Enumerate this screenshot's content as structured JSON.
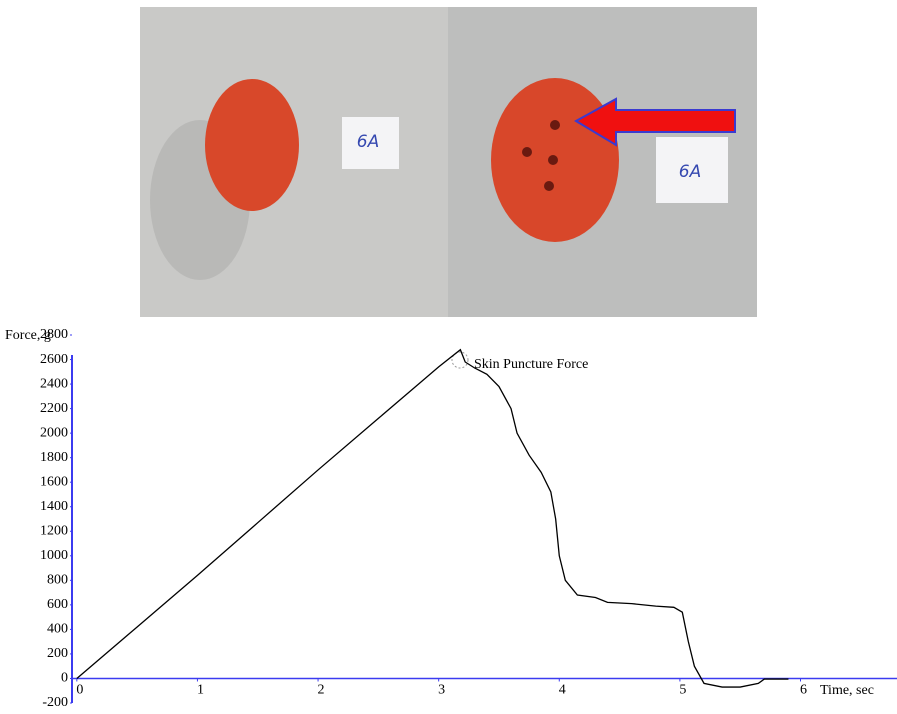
{
  "photo": {
    "labels": [
      "6A",
      "6A"
    ]
  },
  "chart_data": {
    "type": "line",
    "y_label": "Force, g",
    "x_label": "Time, sec",
    "annotation": "Skin Puncture Force",
    "x": [
      0,
      0.5,
      1,
      1.5,
      2,
      2.5,
      3,
      3.18,
      3.22,
      3.3,
      3.4,
      3.5,
      3.6,
      3.65,
      3.75,
      3.85,
      3.93,
      3.97,
      4.0,
      4.05,
      4.15,
      4.3,
      4.4,
      4.6,
      4.8,
      4.95,
      5.02,
      5.07,
      5.12,
      5.2,
      5.35,
      5.5,
      5.65,
      5.7,
      5.9
    ],
    "values": [
      0,
      420,
      840,
      1270,
      1700,
      2120,
      2540,
      2680,
      2580,
      2530,
      2480,
      2380,
      2200,
      2000,
      1820,
      1680,
      1520,
      1300,
      1000,
      800,
      680,
      660,
      620,
      610,
      590,
      580,
      540,
      300,
      100,
      -40,
      -70,
      -70,
      -40,
      -5,
      -5
    ],
    "color": "#000000",
    "axis_color": "#3b3bf0",
    "xlim": [
      -0.04,
      6.8
    ],
    "ylim": [
      -200,
      2800
    ],
    "xticks": [
      0,
      1,
      2,
      3,
      4,
      5,
      6
    ],
    "yticks": [
      -200,
      0,
      200,
      400,
      600,
      800,
      1000,
      1200,
      1400,
      1600,
      1800,
      2000,
      2200,
      2400,
      2600,
      2800
    ]
  }
}
